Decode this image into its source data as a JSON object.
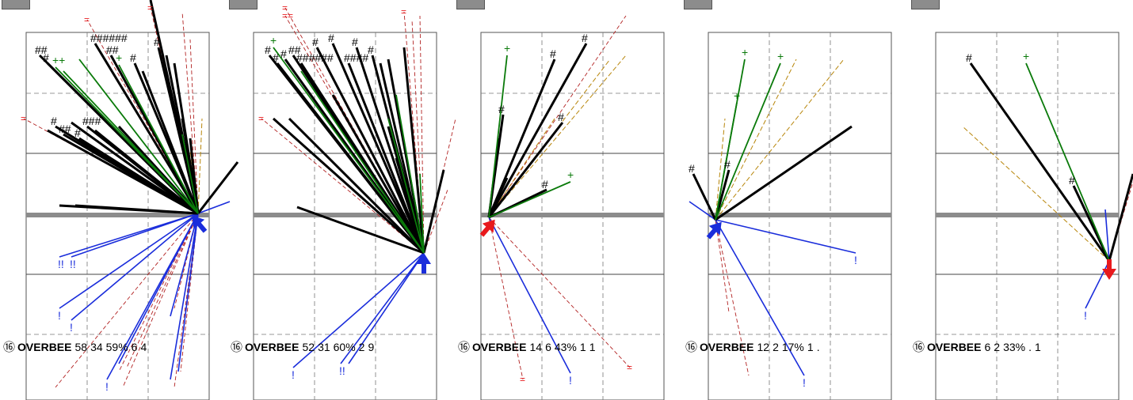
{
  "chart_data": {
    "type": "spray-chart",
    "colors": {
      "hit": "#000000",
      "walk": "#0a7a0a",
      "out": "#1a2ddb",
      "foul": "#e8191c",
      "dash": "#b8860b",
      "grid": "#555555",
      "baseline": "#8c8c8c",
      "arrow_blue": "#1a2ddb",
      "arrow_red": "#e8191c"
    },
    "panels": [
      {
        "rank": "16",
        "player": "OVERBEE",
        "stats": [
          "58",
          "34",
          "59%",
          "6",
          "4"
        ],
        "arrow": {
          "color": "blue",
          "dir": "up-left"
        },
        "labels": {
          "hash": [
            "##",
            "#",
            "#",
            "##",
            "#",
            "###",
            "######",
            "##",
            "#",
            "#",
            "#"
          ],
          "plus": [
            "++",
            "+"
          ],
          "bang": [
            "!!",
            "!!",
            "!",
            "!",
            "!"
          ],
          "eq": [
            "=",
            "=",
            "="
          ]
        }
      },
      {
        "rank": "16",
        "player": "OVERBEE",
        "stats": [
          "52",
          "31",
          "60%",
          "2",
          "9"
        ],
        "arrow": {
          "color": "blue",
          "dir": "up"
        },
        "labels": {
          "hash": [
            "#",
            "#",
            "#",
            "##",
            "######",
            "#",
            "#",
            "####",
            "#",
            "#"
          ],
          "plus": [
            "+"
          ],
          "bang": [
            "!",
            "!!"
          ],
          "eq": [
            "=",
            "==",
            "=",
            "="
          ]
        }
      },
      {
        "rank": "16",
        "player": "OVERBEE",
        "stats": [
          "14",
          "6",
          "43%",
          "1",
          "1"
        ],
        "arrow": {
          "color": "red",
          "dir": "up-right"
        },
        "labels": {
          "hash": [
            "#",
            "#",
            "#",
            "#",
            "#"
          ],
          "plus": [
            "+",
            "+"
          ],
          "bang": [
            "!"
          ],
          "eq": [
            "=",
            "="
          ]
        }
      },
      {
        "rank": "16",
        "player": "OVERBEE",
        "stats": [
          "12",
          "2",
          "17%",
          "1",
          "."
        ],
        "arrow": {
          "color": "blue",
          "dir": "up-right"
        },
        "labels": {
          "hash": [
            "#",
            "#"
          ],
          "plus": [
            "+",
            "+",
            "+"
          ],
          "bang": [
            "!",
            "!"
          ],
          "eq": []
        }
      },
      {
        "rank": "16",
        "player": "OVERBEE",
        "stats": [
          "6",
          "2",
          "33%",
          ".",
          "1"
        ],
        "arrow": {
          "color": "red",
          "dir": "down"
        },
        "labels": {
          "hash": [
            "#",
            "#"
          ],
          "plus": [
            "+"
          ],
          "bang": [
            "!"
          ],
          "eq": []
        }
      }
    ]
  }
}
